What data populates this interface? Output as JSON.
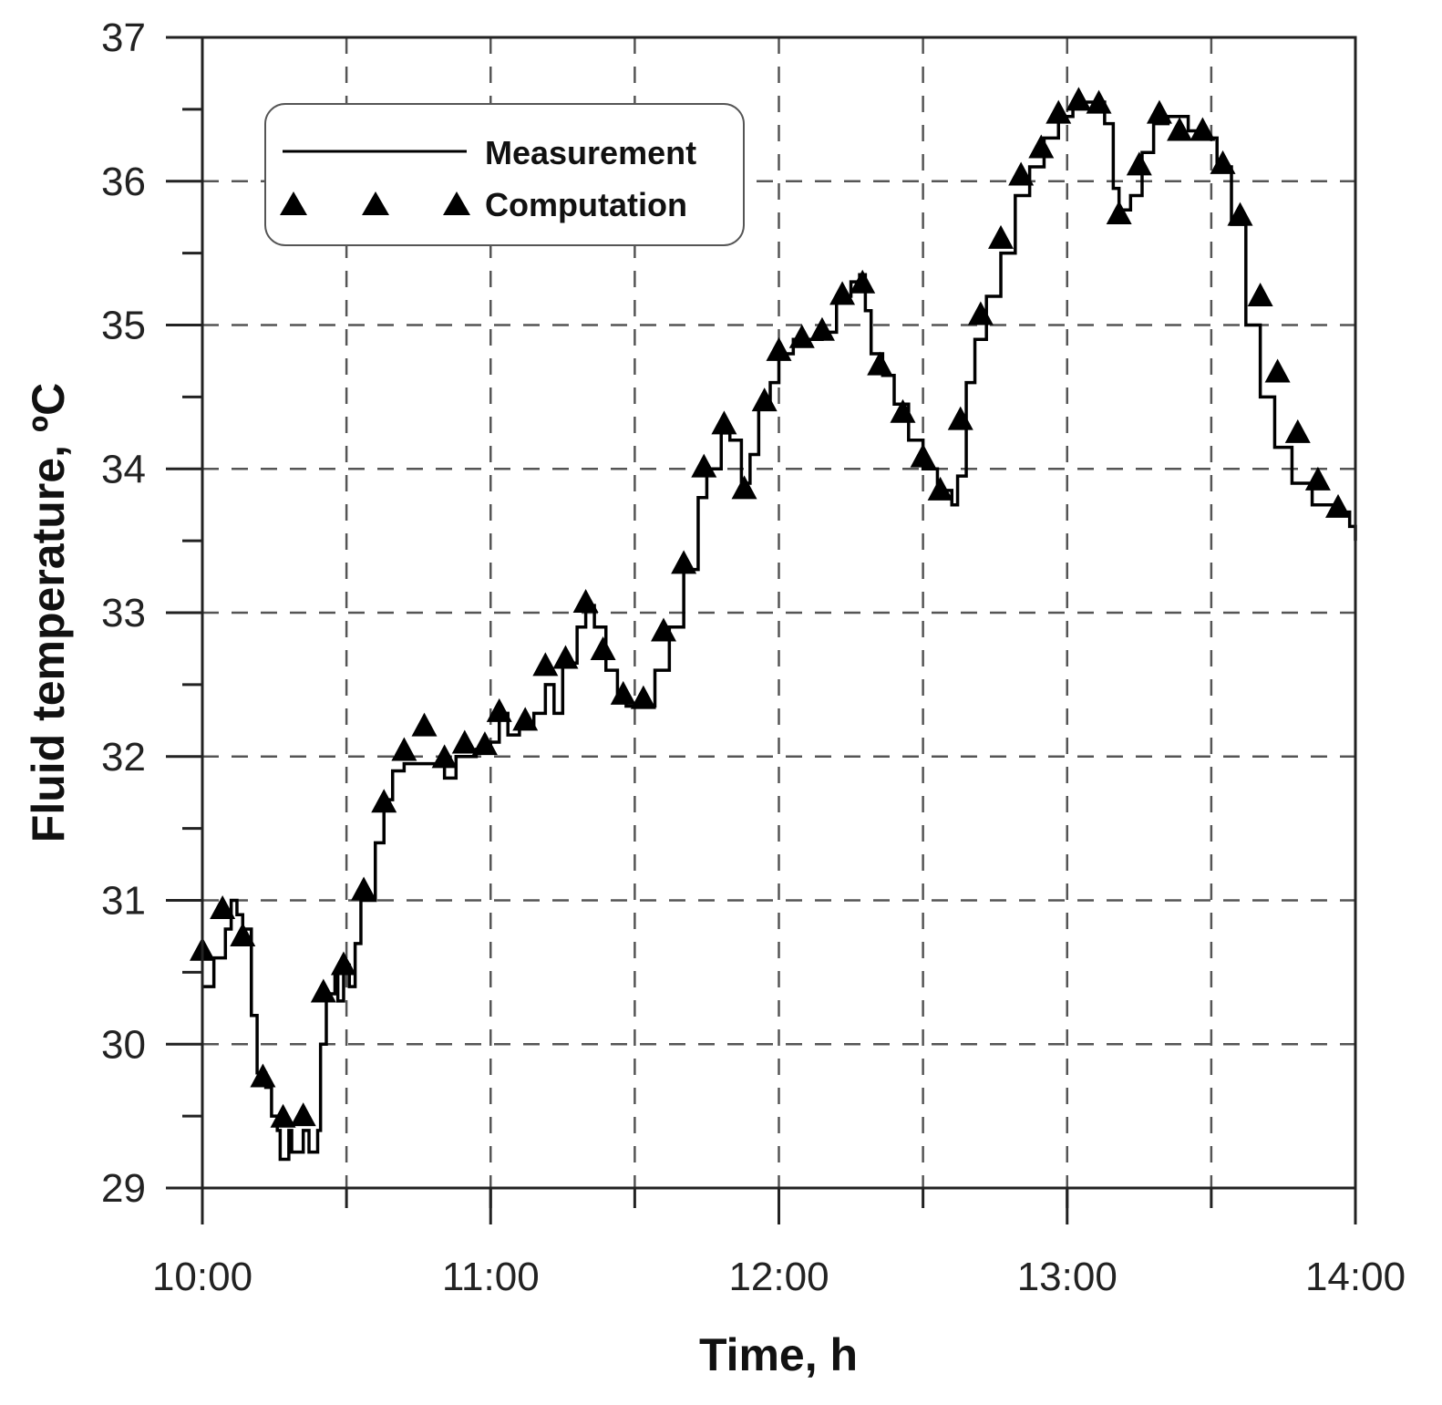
{
  "chart_data": {
    "type": "line",
    "title": "",
    "xlabel": "Time, h",
    "ylabel": "Fluid temperature, ºC",
    "xlim": [
      10,
      14
    ],
    "ylim": [
      29,
      37
    ],
    "x_ticks": [
      10,
      11,
      12,
      13,
      14
    ],
    "x_tick_labels": [
      "10:00",
      "11:00",
      "12:00",
      "13:00",
      "14:00"
    ],
    "y_ticks": [
      29,
      30,
      31,
      32,
      33,
      34,
      35,
      36,
      37
    ],
    "y_tick_labels": [
      "29",
      "30",
      "31",
      "32",
      "33",
      "34",
      "35",
      "36",
      "37"
    ],
    "grid": true,
    "legend_position": "top-left",
    "series": [
      {
        "name": "Measurement",
        "style": "line",
        "color": "#000000",
        "x": [
          10.0,
          10.03,
          10.04,
          10.08,
          10.1,
          10.12,
          10.14,
          10.17,
          10.19,
          10.22,
          10.24,
          10.26,
          10.27,
          10.29,
          10.3,
          10.31,
          10.34,
          10.35,
          10.37,
          10.39,
          10.4,
          10.41,
          10.43,
          10.46,
          10.47,
          10.49,
          10.51,
          10.53,
          10.55,
          10.58,
          10.6,
          10.63,
          10.66,
          10.7,
          10.8,
          10.84,
          10.88,
          10.95,
          11.0,
          11.03,
          11.06,
          11.1,
          11.15,
          11.19,
          11.22,
          11.25,
          11.3,
          11.33,
          11.36,
          11.4,
          11.44,
          11.47,
          11.53,
          11.57,
          11.62,
          11.67,
          11.72,
          11.75,
          11.8,
          11.83,
          11.87,
          11.9,
          11.93,
          11.97,
          12.0,
          12.05,
          12.15,
          12.2,
          12.25,
          12.28,
          12.3,
          12.32,
          12.36,
          12.4,
          12.45,
          12.5,
          12.55,
          12.6,
          12.62,
          12.65,
          12.68,
          12.72,
          12.77,
          12.82,
          12.87,
          12.92,
          12.97,
          13.02,
          13.1,
          13.13,
          13.16,
          13.18,
          13.22,
          13.26,
          13.3,
          13.35,
          13.42,
          13.47,
          13.52,
          13.57,
          13.62,
          13.67,
          13.72,
          13.78,
          13.85,
          13.95,
          13.98,
          14.0
        ],
        "y": [
          30.4,
          30.4,
          30.6,
          30.8,
          31.0,
          30.9,
          30.8,
          30.2,
          29.8,
          29.7,
          29.5,
          29.4,
          29.2,
          29.2,
          29.4,
          29.25,
          29.25,
          29.4,
          29.25,
          29.25,
          29.4,
          30.0,
          30.35,
          30.5,
          30.3,
          30.55,
          30.4,
          30.7,
          31.0,
          31.0,
          31.4,
          31.7,
          31.9,
          31.95,
          31.95,
          31.85,
          32.0,
          32.05,
          32.1,
          32.3,
          32.15,
          32.2,
          32.3,
          32.5,
          32.3,
          32.65,
          32.9,
          33.05,
          32.9,
          32.6,
          32.4,
          32.35,
          32.35,
          32.6,
          32.9,
          33.3,
          33.8,
          34.0,
          34.25,
          34.2,
          33.9,
          34.1,
          34.45,
          34.6,
          34.8,
          34.9,
          34.95,
          35.2,
          35.3,
          35.35,
          35.1,
          34.8,
          34.65,
          34.45,
          34.2,
          34.0,
          33.85,
          33.75,
          33.95,
          34.6,
          34.9,
          35.2,
          35.5,
          35.9,
          36.1,
          36.3,
          36.45,
          36.55,
          36.55,
          36.4,
          35.95,
          35.8,
          35.9,
          36.2,
          36.4,
          36.45,
          36.35,
          36.3,
          36.1,
          35.7,
          35.0,
          34.5,
          34.15,
          33.9,
          33.75,
          33.7,
          33.6,
          33.5
        ]
      },
      {
        "name": "Computation",
        "style": "marker-triangle",
        "color": "#000000",
        "x": [
          10.0,
          10.07,
          10.14,
          10.21,
          10.28,
          10.35,
          10.42,
          10.49,
          10.56,
          10.63,
          10.7,
          10.77,
          10.84,
          10.91,
          10.98,
          11.03,
          11.12,
          11.19,
          11.26,
          11.33,
          11.39,
          11.46,
          11.53,
          11.6,
          11.67,
          11.74,
          11.81,
          11.88,
          11.95,
          12.0,
          12.08,
          12.15,
          12.22,
          12.29,
          12.35,
          12.43,
          12.5,
          12.56,
          12.63,
          12.7,
          12.77,
          12.84,
          12.91,
          12.97,
          13.04,
          13.11,
          13.18,
          13.25,
          13.32,
          13.39,
          13.47,
          13.54,
          13.6,
          13.67,
          13.73,
          13.8,
          13.87,
          13.94
        ],
        "y": [
          30.65,
          30.94,
          30.75,
          29.77,
          29.49,
          29.5,
          30.36,
          30.55,
          31.07,
          31.68,
          32.04,
          32.21,
          31.99,
          32.09,
          32.08,
          32.31,
          32.25,
          32.63,
          32.68,
          33.07,
          32.74,
          32.43,
          32.4,
          32.87,
          33.34,
          34.01,
          34.31,
          33.86,
          34.47,
          34.82,
          34.91,
          34.96,
          35.21,
          35.29,
          34.72,
          34.39,
          34.08,
          33.85,
          34.34,
          35.07,
          35.6,
          36.04,
          36.23,
          36.47,
          36.56,
          36.54,
          35.77,
          36.11,
          36.47,
          36.35,
          36.35,
          36.12,
          35.76,
          35.2,
          34.67,
          34.25,
          33.92,
          33.73
        ]
      }
    ]
  }
}
